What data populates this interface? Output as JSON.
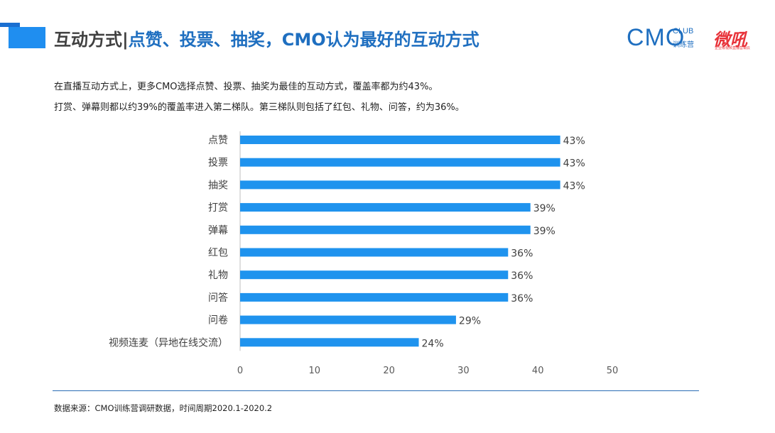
{
  "header": {
    "title_prefix": "互动方式|",
    "title_rest": "点赞、投票、抽奖，CMO认为最好的互动方式",
    "logo_cmo": "CMO",
    "logo_club": "CLUB",
    "logo_train": "训练营",
    "logo_weihou": "微吼",
    "logo_weihou_sub": "企业级视频直播营销云"
  },
  "description": {
    "line1": "在直播互动方式上，更多CMO选择点赞、投票、抽奖为最佳的互动方式，覆盖率都为约43%。",
    "line2": "打赏、弹幕则都以约39%的覆盖率进入第二梯队。第三梯队则包括了红包、礼物、问答，约为36%。"
  },
  "chart_data": {
    "type": "bar",
    "orientation": "horizontal",
    "categories": [
      "点赞",
      "投票",
      "抽奖",
      "打赏",
      "弹幕",
      "红包",
      "礼物",
      "问答",
      "问卷",
      "视频连麦（异地在线交流）"
    ],
    "values": [
      43,
      43,
      43,
      39,
      39,
      36,
      36,
      36,
      29,
      24
    ],
    "data_labels": [
      "43%",
      "43%",
      "43%",
      "39%",
      "39%",
      "36%",
      "36%",
      "36%",
      "29%",
      "24%"
    ],
    "xlim": [
      0,
      50
    ],
    "xticks": [
      0,
      10,
      20,
      30,
      40,
      50
    ],
    "bar_color": "#1f93ee",
    "title": "",
    "xlabel": "",
    "ylabel": ""
  },
  "footer": {
    "source": "数据来源：CMO训练营调研数据，时间周期2020.1-2020.2"
  }
}
